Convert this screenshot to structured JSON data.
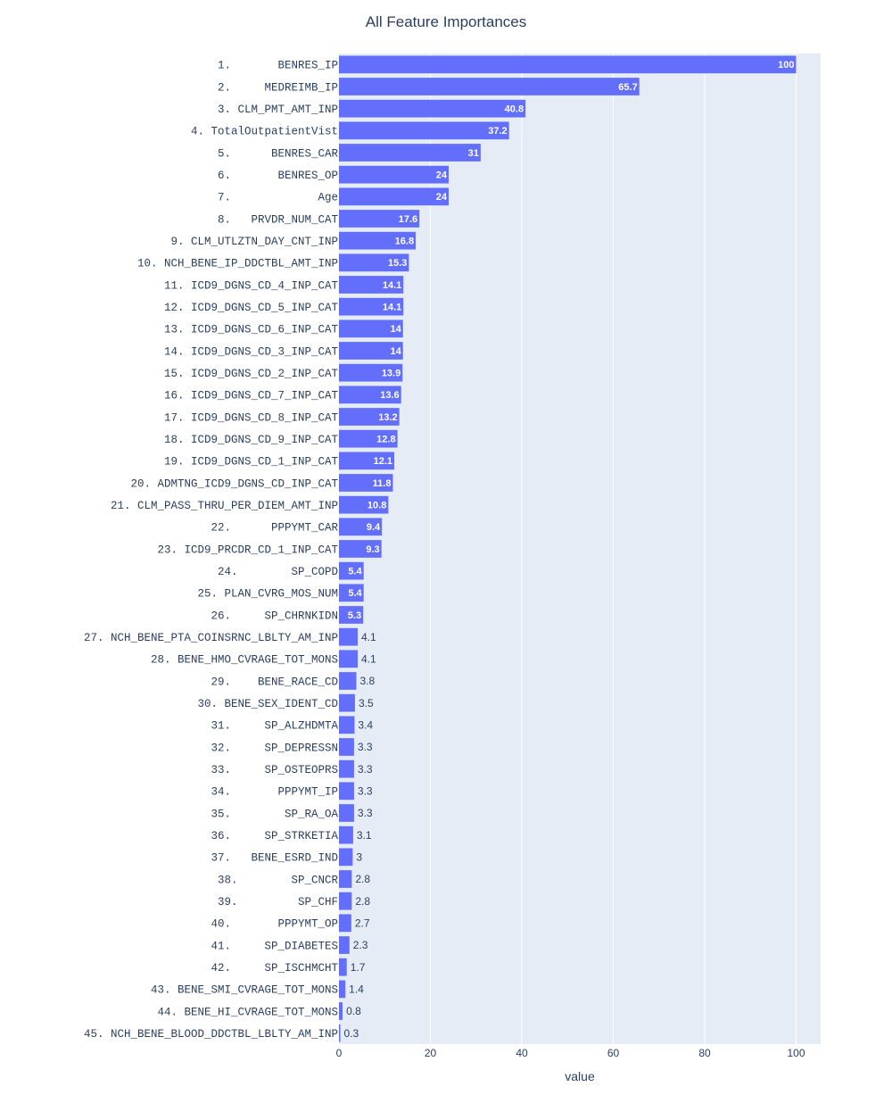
{
  "chart_data": {
    "type": "bar",
    "orientation": "horizontal",
    "title": "All Feature Importances",
    "xlabel": "value",
    "ylabel": "",
    "xlim": [
      0,
      105
    ],
    "xticks": [
      0,
      20,
      40,
      60,
      80,
      100
    ],
    "grid": true,
    "colors": {
      "bar": "#636efa",
      "plot_bg": "#e5ecf6",
      "grid": "#ffffff",
      "text": "#2a3f5f"
    },
    "categories": [
      "1.       BENRES_IP",
      "2.     MEDREIMB_IP",
      "3. CLM_PMT_AMT_INP",
      "4. TotalOutpatientVist",
      "5.      BENRES_CAR",
      "6.       BENRES_OP",
      "7.             Age",
      "8.   PRVDR_NUM_CAT",
      "9. CLM_UTLZTN_DAY_CNT_INP",
      "10. NCH_BENE_IP_DDCTBL_AMT_INP",
      "11. ICD9_DGNS_CD_4_INP_CAT",
      "12. ICD9_DGNS_CD_5_INP_CAT",
      "13. ICD9_DGNS_CD_6_INP_CAT",
      "14. ICD9_DGNS_CD_3_INP_CAT",
      "15. ICD9_DGNS_CD_2_INP_CAT",
      "16. ICD9_DGNS_CD_7_INP_CAT",
      "17. ICD9_DGNS_CD_8_INP_CAT",
      "18. ICD9_DGNS_CD_9_INP_CAT",
      "19. ICD9_DGNS_CD_1_INP_CAT",
      "20. ADMTNG_ICD9_DGNS_CD_INP_CAT",
      "21. CLM_PASS_THRU_PER_DIEM_AMT_INP",
      "22.      PPPYMT_CAR",
      "23. ICD9_PRCDR_CD_1_INP_CAT",
      "24.        SP_COPD",
      "25. PLAN_CVRG_MOS_NUM",
      "26.     SP_CHRNKIDN",
      "27. NCH_BENE_PTA_COINSRNC_LBLTY_AM_INP",
      "28. BENE_HMO_CVRAGE_TOT_MONS",
      "29.    BENE_RACE_CD",
      "30. BENE_SEX_IDENT_CD",
      "31.     SP_ALZHDMTA",
      "32.     SP_DEPRESSN",
      "33.     SP_OSTEOPRS",
      "34.       PPPYMT_IP",
      "35.        SP_RA_OA",
      "36.     SP_STRKETIA",
      "37.   BENE_ESRD_IND",
      "38.        SP_CNCR",
      "39.         SP_CHF",
      "40.       PPPYMT_OP",
      "41.     SP_DIABETES",
      "42.     SP_ISCHMCHT",
      "43. BENE_SMI_CVRAGE_TOT_MONS",
      "44. BENE_HI_CVRAGE_TOT_MONS",
      "45. NCH_BENE_BLOOD_DDCTBL_LBLTY_AM_INP"
    ],
    "values": [
      100,
      65.7,
      40.8,
      37.2,
      31,
      24,
      24,
      17.6,
      16.8,
      15.3,
      14.1,
      14.1,
      14,
      14,
      13.9,
      13.6,
      13.2,
      12.8,
      12.1,
      11.8,
      10.8,
      9.4,
      9.3,
      5.4,
      5.4,
      5.3,
      4.1,
      4.1,
      3.8,
      3.5,
      3.4,
      3.3,
      3.3,
      3.3,
      3.3,
      3.1,
      3,
      2.8,
      2.8,
      2.7,
      2.3,
      1.7,
      1.4,
      0.8,
      0.3
    ]
  }
}
